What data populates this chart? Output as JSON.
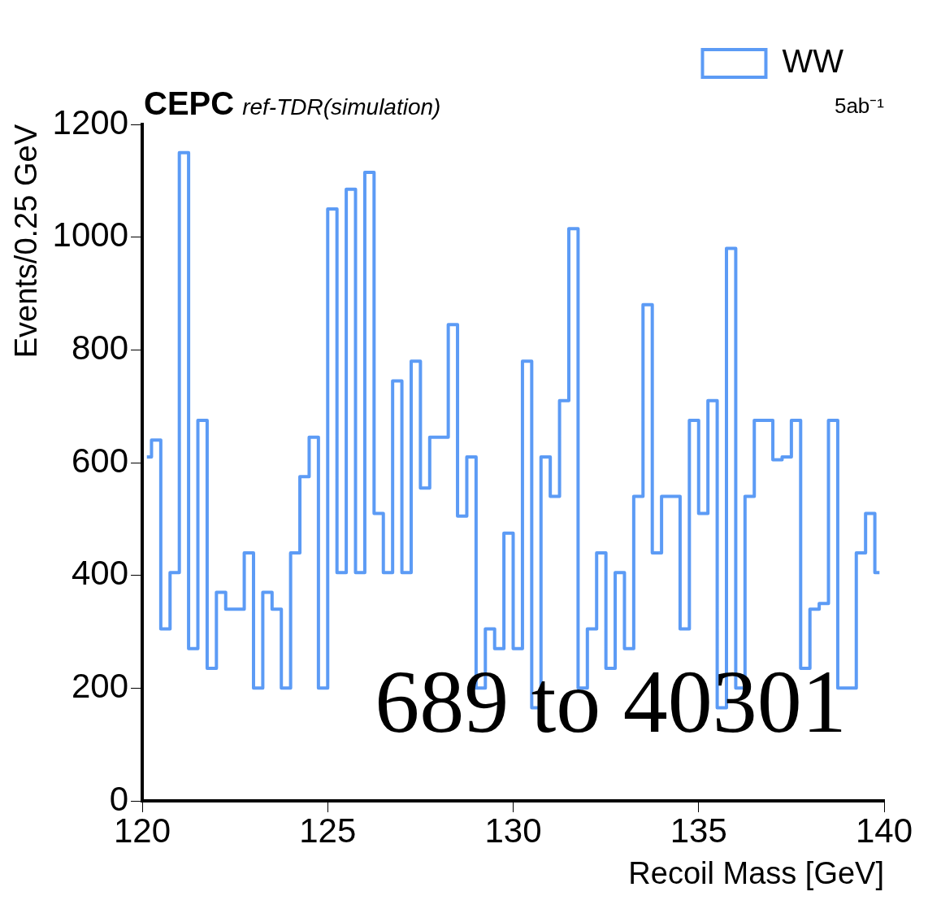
{
  "chart_data": {
    "type": "step",
    "title": "CEPC",
    "subtitle": "ref-TDR(simulation)",
    "xlabel": "Recoil Mass [GeV]",
    "ylabel": "Events/0.25 GeV",
    "annotations": [
      "5ab⁻¹",
      "689 to 40301"
    ],
    "x": [
      120.125,
      120.375,
      120.625,
      120.875,
      121.125,
      121.375,
      121.625,
      121.875,
      122.125,
      122.375,
      122.625,
      122.875,
      123.125,
      123.375,
      123.625,
      123.875,
      124.125,
      124.375,
      124.625,
      124.875,
      125.125,
      125.375,
      125.625,
      125.875,
      126.125,
      126.375,
      126.625,
      126.875,
      127.125,
      127.375,
      127.625,
      127.875,
      128.125,
      128.375,
      128.625,
      128.875,
      129.125,
      129.375,
      129.625,
      129.875,
      130.125,
      130.375,
      130.625,
      130.875,
      131.125,
      131.375,
      131.625,
      131.875,
      132.125,
      132.375,
      132.625,
      132.875,
      133.125,
      133.375,
      133.625,
      133.875,
      134.125,
      134.375,
      134.625,
      134.875,
      135.125,
      135.375,
      135.625,
      135.875,
      136.125,
      136.375,
      136.625,
      136.875,
      137.125,
      137.375,
      137.625,
      137.875,
      138.125,
      138.375,
      138.625,
      138.875,
      139.125,
      139.375,
      139.625,
      139.875
    ],
    "series": [
      {
        "name": "WW",
        "color": "#5c9bf5",
        "values": [
          610,
          640,
          305,
          405,
          1150,
          270,
          675,
          235,
          370,
          340,
          340,
          440,
          200,
          370,
          340,
          200,
          440,
          575,
          645,
          200,
          1050,
          405,
          1085,
          405,
          1115,
          510,
          405,
          745,
          405,
          780,
          555,
          645,
          645,
          845,
          505,
          610,
          200,
          305,
          270,
          475,
          270,
          780,
          165,
          610,
          540,
          710,
          1015,
          200,
          305,
          440,
          235,
          405,
          270,
          540,
          880,
          440,
          540,
          540,
          305,
          675,
          510,
          710,
          165,
          980,
          200,
          540,
          675,
          675,
          605,
          610,
          675,
          235,
          340,
          350,
          675,
          200,
          200,
          440,
          510,
          405
        ]
      }
    ],
    "xlim": [
      120,
      140
    ],
    "ylim": [
      0,
      1200
    ],
    "xticks": [
      120,
      125,
      130,
      135,
      140
    ],
    "yticks": [
      0,
      200,
      400,
      600,
      800,
      1000,
      1200
    ],
    "grid": false,
    "legend": "top right",
    "marker": "none"
  }
}
